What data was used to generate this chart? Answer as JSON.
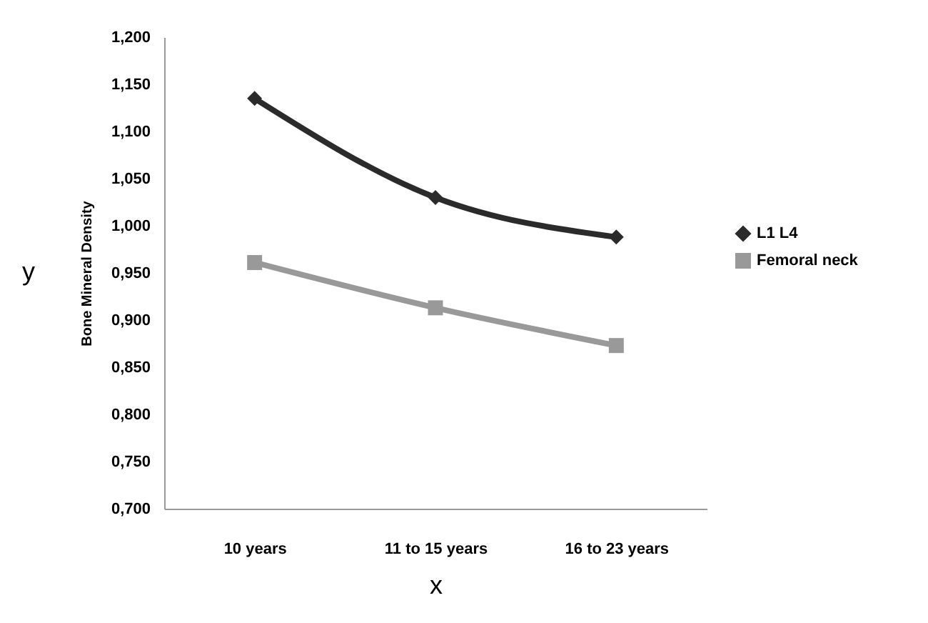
{
  "chart_data": {
    "type": "line",
    "xlabel": "x",
    "ylabel": "Bone Mineral Density",
    "annotations": [
      "y"
    ],
    "categories": [
      "10 years",
      "11 to 15 years",
      "16 to 23 years"
    ],
    "series": [
      {
        "name": "L1 L4",
        "color": "#2b2b2b",
        "marker": "diamond",
        "values": [
          1.135,
          1.03,
          0.988
        ]
      },
      {
        "name": "Femoral neck",
        "color": "#999999",
        "marker": "square",
        "values": [
          0.961,
          0.913,
          0.873
        ]
      }
    ],
    "ylim": [
      0.7,
      1.2
    ],
    "yticks": [
      {
        "value": 0.7,
        "label": "0,700"
      },
      {
        "value": 0.75,
        "label": "0,750"
      },
      {
        "value": 0.8,
        "label": "0,800"
      },
      {
        "value": 0.85,
        "label": "0,850"
      },
      {
        "value": 0.9,
        "label": "0,900"
      },
      {
        "value": 0.95,
        "label": "0,950"
      },
      {
        "value": 1.0,
        "label": "1,000"
      },
      {
        "value": 1.05,
        "label": "1,050"
      },
      {
        "value": 1.1,
        "label": "1,100"
      },
      {
        "value": 1.15,
        "label": "1,150"
      },
      {
        "value": 1.2,
        "label": "1,200"
      }
    ],
    "grid": false,
    "legend": "right",
    "line_style": "solid"
  }
}
